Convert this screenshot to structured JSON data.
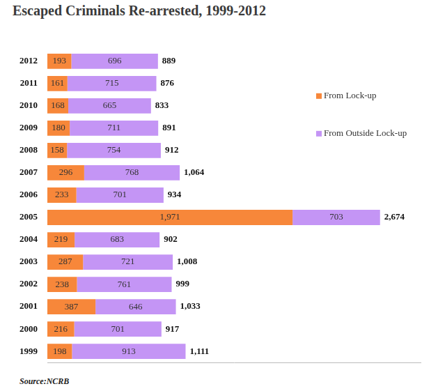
{
  "chart_data": {
    "type": "bar",
    "title": "Escaped Criminals Re-arrested, 1999-2012",
    "source": "Source:NCRB",
    "orientation": "horizontal",
    "stacked": true,
    "data_labels": true,
    "tick_labels": "y",
    "grid": false,
    "legend": "upper right",
    "categories": [
      "2012",
      "2011",
      "2010",
      "2009",
      "2008",
      "2007",
      "2006",
      "2005",
      "2004",
      "2003",
      "2002",
      "2001",
      "2000",
      "1999"
    ],
    "series": [
      {
        "name": "From Lock-up",
        "color": "#f7873a",
        "values": [
          193,
          161,
          168,
          180,
          158,
          296,
          233,
          1971,
          219,
          287,
          238,
          387,
          216,
          198
        ],
        "value_labels": [
          "193",
          "161",
          "168",
          "180",
          "158",
          "296",
          "233",
          "1,971",
          "219",
          "287",
          "238",
          "387",
          "216",
          "198"
        ]
      },
      {
        "name": "From Outside Lock-up",
        "color": "#c495f5",
        "values": [
          696,
          715,
          665,
          711,
          754,
          768,
          701,
          703,
          683,
          721,
          761,
          646,
          701,
          913
        ]
      }
    ],
    "totals": [
      889,
      876,
      833,
      891,
      912,
      1064,
      934,
      2674,
      902,
      1008,
      999,
      1033,
      917,
      1111
    ],
    "total_labels": [
      "889",
      "876",
      "833",
      "891",
      "912",
      "1,064",
      "934",
      "2,674",
      "902",
      "1,008",
      "999",
      "1,033",
      "917",
      "1,111"
    ],
    "xlim": [
      0,
      3000
    ],
    "xticks": []
  }
}
